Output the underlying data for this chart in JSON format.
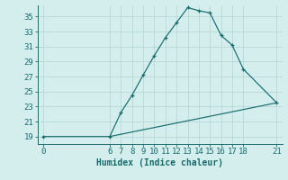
{
  "xlabel": "Humidex (Indice chaleur)",
  "bg_color": "#d4eeee",
  "line_color": "#1a6b6b",
  "grid_color": "#b8d8d8",
  "x_ticks": [
    0,
    6,
    7,
    8,
    9,
    10,
    11,
    12,
    13,
    14,
    15,
    16,
    17,
    18,
    21
  ],
  "y_ticks": [
    19,
    21,
    23,
    25,
    27,
    29,
    31,
    33,
    35
  ],
  "xlim": [
    -0.5,
    21.5
  ],
  "ylim": [
    18.0,
    36.5
  ],
  "main_line_x": [
    0,
    6,
    7,
    8,
    9,
    10,
    11,
    12,
    13,
    14,
    15,
    16,
    17,
    18,
    21
  ],
  "main_line_y": [
    19,
    19,
    22.2,
    24.5,
    27.2,
    29.8,
    32.2,
    34.2,
    36.2,
    35.8,
    35.5,
    32.5,
    31.2,
    28.0,
    23.5
  ],
  "base_line_x": [
    6,
    21
  ],
  "base_line_y": [
    19,
    23.5
  ],
  "xlabel_fontsize": 7,
  "tick_fontsize": 6.5
}
